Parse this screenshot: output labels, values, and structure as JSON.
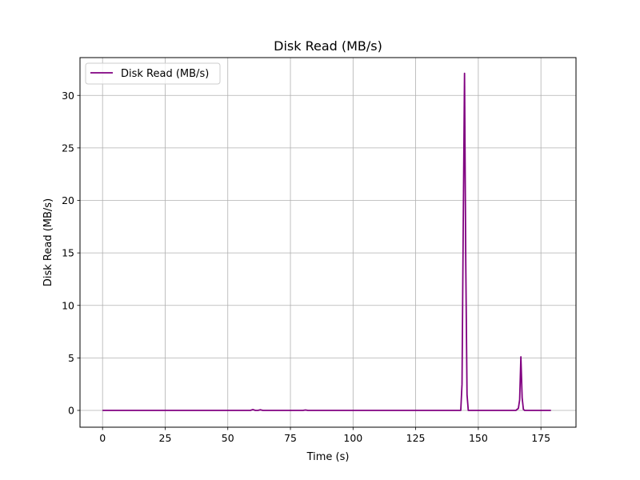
{
  "chart_data": {
    "type": "line",
    "title": "Disk Read (MB/s)",
    "xlabel": "Time (s)",
    "ylabel": "Disk Read (MB/s)",
    "xlim": [
      -9,
      189
    ],
    "ylim": [
      -1.6,
      33.6
    ],
    "xticks": [
      0,
      25,
      50,
      75,
      100,
      125,
      150,
      175
    ],
    "yticks": [
      0,
      5,
      10,
      15,
      20,
      25,
      30
    ],
    "grid": true,
    "legend_position": "top-left",
    "series": [
      {
        "name": "Disk Read (MB/s)",
        "color": "#800080",
        "x": [
          0,
          10,
          20,
          30,
          40,
          50,
          59,
          60,
          61,
          62,
          63,
          64,
          70,
          80,
          81,
          82,
          90,
          100,
          110,
          120,
          130,
          140,
          143,
          143.5,
          144,
          144.5,
          145,
          145.5,
          146,
          147,
          150,
          155,
          160,
          165,
          166,
          166.5,
          167,
          167.5,
          168,
          168.5,
          170,
          175,
          179
        ],
        "y": [
          0,
          0,
          0,
          0,
          0,
          0,
          0,
          0.08,
          0,
          0,
          0.06,
          0,
          0,
          0,
          0.04,
          0,
          0,
          0,
          0,
          0,
          0,
          0,
          0,
          2.5,
          18.0,
          32.1,
          14.0,
          1.5,
          0,
          0,
          0,
          0,
          0,
          0,
          0.2,
          1.0,
          5.1,
          1.2,
          0.1,
          0,
          0,
          0,
          0
        ]
      }
    ]
  }
}
